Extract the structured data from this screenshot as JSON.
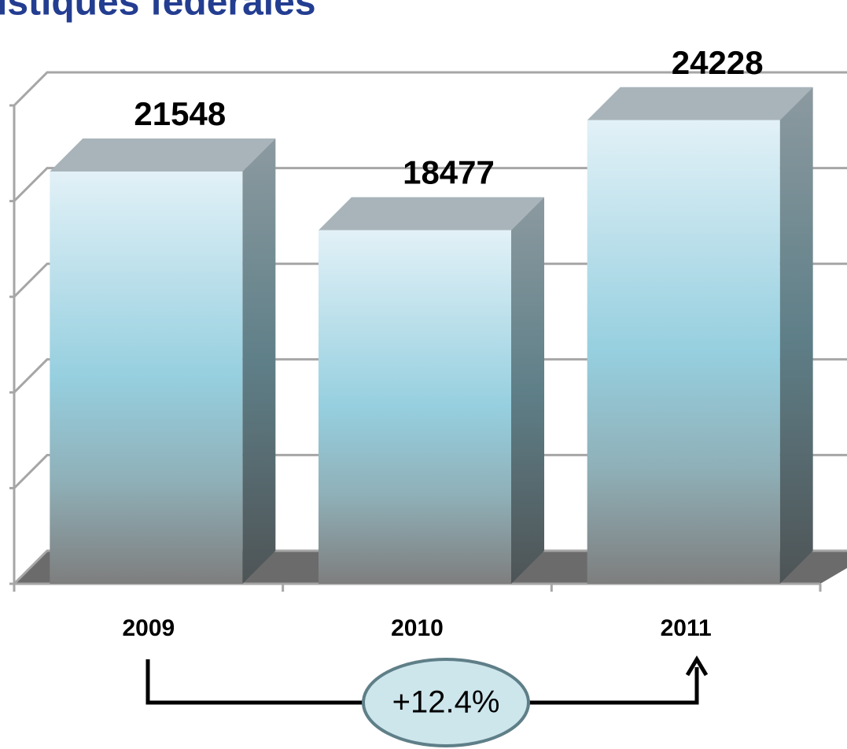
{
  "chart_data": {
    "type": "bar",
    "title": "istiques fédérales",
    "categories": [
      "2009",
      "2010",
      "2011"
    ],
    "values": [
      21548,
      18477,
      24228
    ],
    "ylim": [
      0,
      25000
    ],
    "yticks": [
      0,
      5000,
      10000,
      15000,
      20000,
      25000
    ],
    "grid": true,
    "annotation": "+12.4%"
  }
}
